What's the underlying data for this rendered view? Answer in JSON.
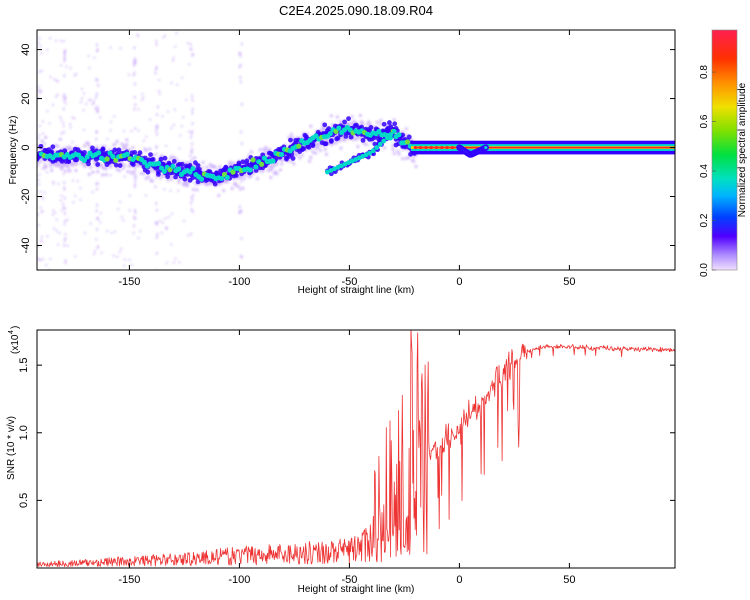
{
  "title": "C2E4.2025.090.18.09.R04",
  "colors": {
    "snr_line": "#ee3333",
    "frame": "#000000",
    "spec_core": "#00d8c8",
    "spec_mid": "#3300ff",
    "spec_halo": "#c8a8f8",
    "spec_peak": "#ff2222",
    "spec_yellow": "#ffd000"
  },
  "chart_data": [
    {
      "type": "heatmap",
      "name": "spectrogram",
      "xlabel": "Height of straight line (km)",
      "ylabel": "Frequency (Hz)",
      "xlim": [
        -192,
        98
      ],
      "ylim": [
        -50,
        48
      ],
      "xticks": [
        -150,
        -100,
        -50,
        0,
        50
      ],
      "yticks": [
        -40,
        -20,
        0,
        20,
        40
      ],
      "trend": [
        {
          "x": -192,
          "y": -3
        },
        {
          "x": -150,
          "y": -4
        },
        {
          "x": -130,
          "y": -9
        },
        {
          "x": -110,
          "y": -12
        },
        {
          "x": -90,
          "y": -6
        },
        {
          "x": -70,
          "y": 2
        },
        {
          "x": -50,
          "y": 8
        },
        {
          "x": -40,
          "y": 5
        },
        {
          "x": -30,
          "y": 6
        },
        {
          "x": -22,
          "y": 0
        },
        {
          "x": 0,
          "y": 0
        },
        {
          "x": 5,
          "y": -3
        },
        {
          "x": 12,
          "y": 0
        },
        {
          "x": 98,
          "y": 0
        }
      ],
      "branch": [
        {
          "x": -60,
          "y": -10
        },
        {
          "x": -40,
          "y": -2
        },
        {
          "x": -28,
          "y": 8
        }
      ],
      "colorbar": {
        "label": "Normalized spectral amplitude",
        "ticks": [
          0.0,
          0.2,
          0.4,
          0.6,
          0.8
        ],
        "tick_labels": [
          "0.0",
          "0.2",
          "0.4",
          "0.6",
          "0.8"
        ],
        "range": [
          0,
          0.97
        ]
      }
    },
    {
      "type": "line",
      "name": "snr",
      "xlabel": "Height of straight line (km)",
      "ylabel": "SNR (10 * v/v)",
      "y_multiplier": "(x10",
      "y_multiplier_exp": "4",
      "y_multiplier_close": ")",
      "xlim": [
        -192,
        98
      ],
      "ylim": [
        0,
        1.76
      ],
      "xticks": [
        -150,
        -100,
        -50,
        0,
        50
      ],
      "yticks": [
        0.5,
        1.0,
        1.5
      ],
      "ytick_labels": [
        "0.5",
        "1.0",
        "1.5"
      ],
      "series": [
        {
          "name": "SNR",
          "envelope_x": [
            -192,
            -170,
            -150,
            -130,
            -110,
            -90,
            -70,
            -50,
            -40,
            -35,
            -30,
            -25,
            -20,
            -15,
            -10,
            0,
            10,
            20,
            30,
            40,
            60,
            80,
            98
          ],
          "envelope_y": [
            0.04,
            0.06,
            0.08,
            0.1,
            0.13,
            0.16,
            0.18,
            0.2,
            0.3,
            0.45,
            0.6,
            0.7,
            0.7,
            0.8,
            0.9,
            1.05,
            1.2,
            1.45,
            1.6,
            1.64,
            1.63,
            1.62,
            1.61
          ]
        }
      ]
    }
  ]
}
